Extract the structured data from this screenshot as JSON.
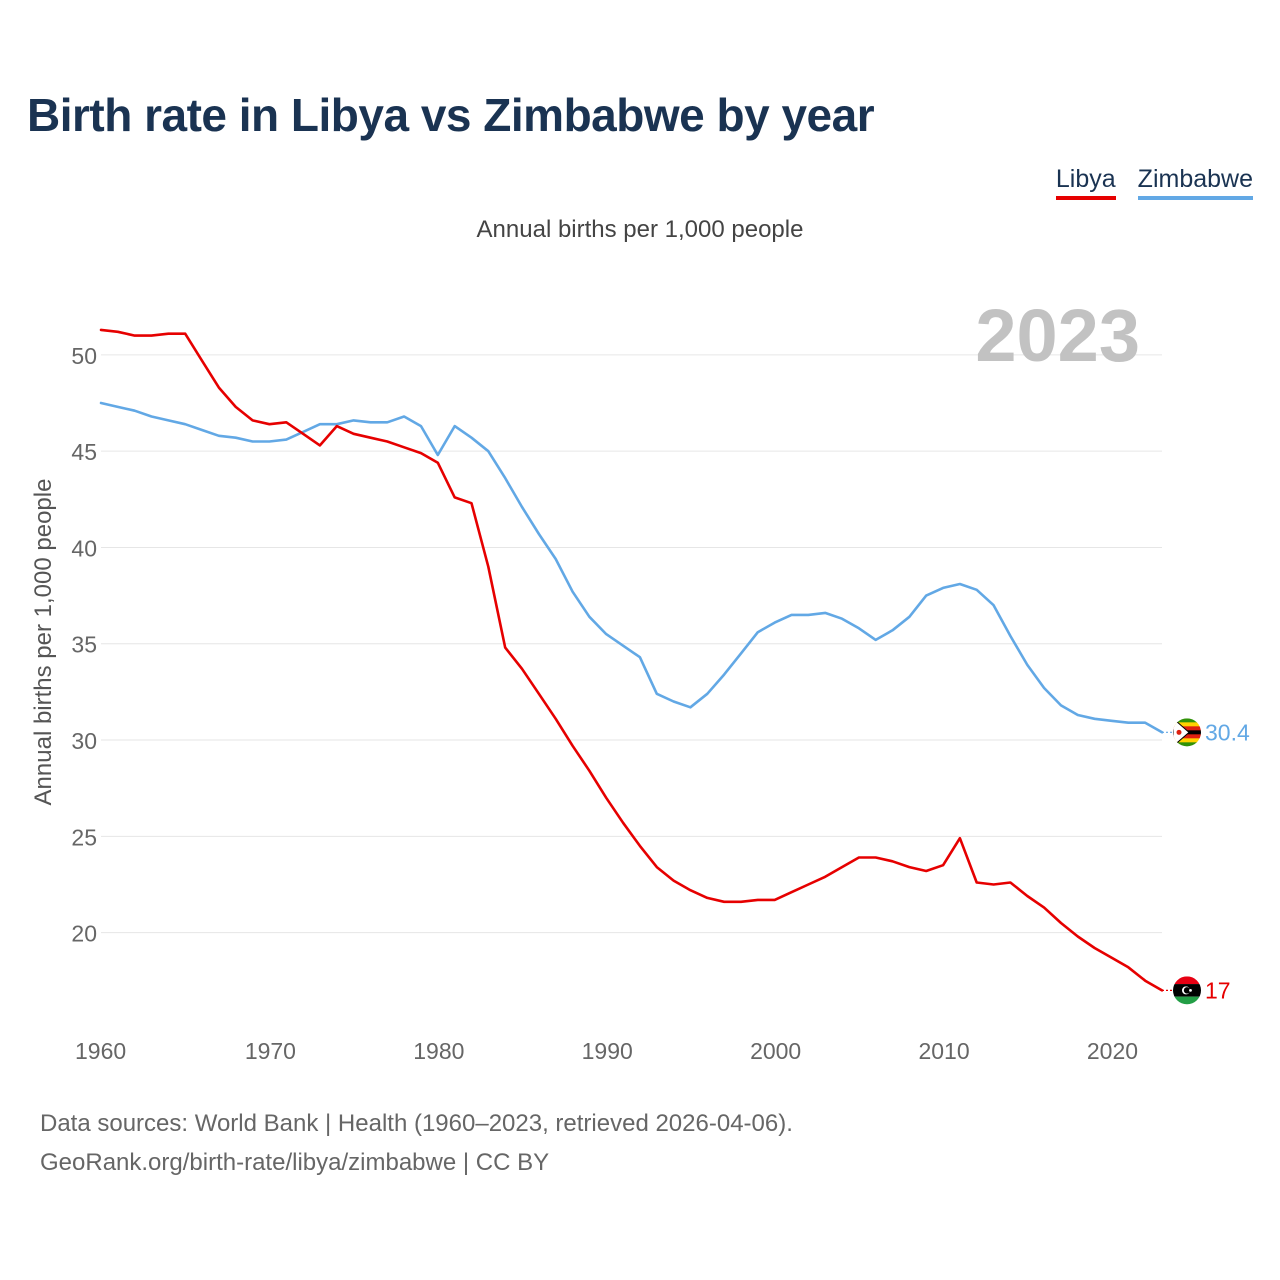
{
  "header": {
    "title": "Birth rate in Libya vs Zimbabwe by year",
    "subtitle": "Annual births per 1,000 people"
  },
  "footer": {
    "line1": "Data sources: World Bank | Health (1960–2023, retrieved 2026-04-06).",
    "line2": "GeoRank.org/birth-rate/libya/zimbabwe | CC BY"
  },
  "chart_data": {
    "type": "line",
    "title": "Birth rate in Libya vs Zimbabwe by year",
    "subtitle": "Annual births per 1,000 people",
    "xlabel": "",
    "ylabel": "Annual births per 1,000 people",
    "year_label": "2023",
    "xlim": [
      1960,
      2023
    ],
    "ylim": [
      15,
      52
    ],
    "x_ticks": [
      1960,
      1970,
      1980,
      1990,
      2000,
      2010,
      2020
    ],
    "y_ticks": [
      20,
      25,
      30,
      35,
      40,
      45,
      50
    ],
    "grid": true,
    "legend": "top-right",
    "x": [
      1960,
      1961,
      1962,
      1963,
      1964,
      1965,
      1966,
      1967,
      1968,
      1969,
      1970,
      1971,
      1972,
      1973,
      1974,
      1975,
      1976,
      1977,
      1978,
      1979,
      1980,
      1981,
      1982,
      1983,
      1984,
      1985,
      1986,
      1987,
      1988,
      1989,
      1990,
      1991,
      1992,
      1993,
      1994,
      1995,
      1996,
      1997,
      1998,
      1999,
      2000,
      2001,
      2002,
      2003,
      2004,
      2005,
      2006,
      2007,
      2008,
      2009,
      2010,
      2011,
      2012,
      2013,
      2014,
      2015,
      2016,
      2017,
      2018,
      2019,
      2020,
      2021,
      2022,
      2023
    ],
    "series": [
      {
        "name": "Libya",
        "color": "#e60000",
        "end_label": "17",
        "flag": "libya-flag-icon",
        "values": [
          51.3,
          51.2,
          51.0,
          51.0,
          51.1,
          51.1,
          49.7,
          48.3,
          47.3,
          46.6,
          46.4,
          46.5,
          45.9,
          45.3,
          46.3,
          45.9,
          45.7,
          45.5,
          45.2,
          44.9,
          44.4,
          42.6,
          42.3,
          39.0,
          34.8,
          33.7,
          32.4,
          31.1,
          29.7,
          28.4,
          27.0,
          25.7,
          24.5,
          23.4,
          22.7,
          22.2,
          21.8,
          21.6,
          21.6,
          21.7,
          21.7,
          22.1,
          22.5,
          22.9,
          23.4,
          23.9,
          23.9,
          23.7,
          23.4,
          23.2,
          23.5,
          24.9,
          22.6,
          22.5,
          22.6,
          21.9,
          21.3,
          20.5,
          19.8,
          19.2,
          18.7,
          18.2,
          17.5,
          17.0
        ]
      },
      {
        "name": "Zimbabwe",
        "color": "#62a8e5",
        "end_label": "30.4",
        "flag": "zimbabwe-flag-icon",
        "values": [
          47.5,
          47.3,
          47.1,
          46.8,
          46.6,
          46.4,
          46.1,
          45.8,
          45.7,
          45.5,
          45.5,
          45.6,
          46.0,
          46.4,
          46.4,
          46.6,
          46.5,
          46.5,
          46.8,
          46.3,
          44.8,
          46.3,
          45.7,
          45.0,
          43.6,
          42.1,
          40.7,
          39.4,
          37.7,
          36.4,
          35.5,
          34.9,
          34.3,
          32.4,
          32.0,
          31.7,
          32.4,
          33.4,
          34.5,
          35.6,
          36.1,
          36.5,
          36.5,
          36.6,
          36.3,
          35.8,
          35.2,
          35.7,
          36.4,
          37.5,
          37.9,
          38.1,
          37.8,
          37.0,
          35.4,
          33.9,
          32.7,
          31.8,
          31.3,
          31.1,
          31.0,
          30.9,
          30.9,
          30.4
        ]
      }
    ]
  }
}
